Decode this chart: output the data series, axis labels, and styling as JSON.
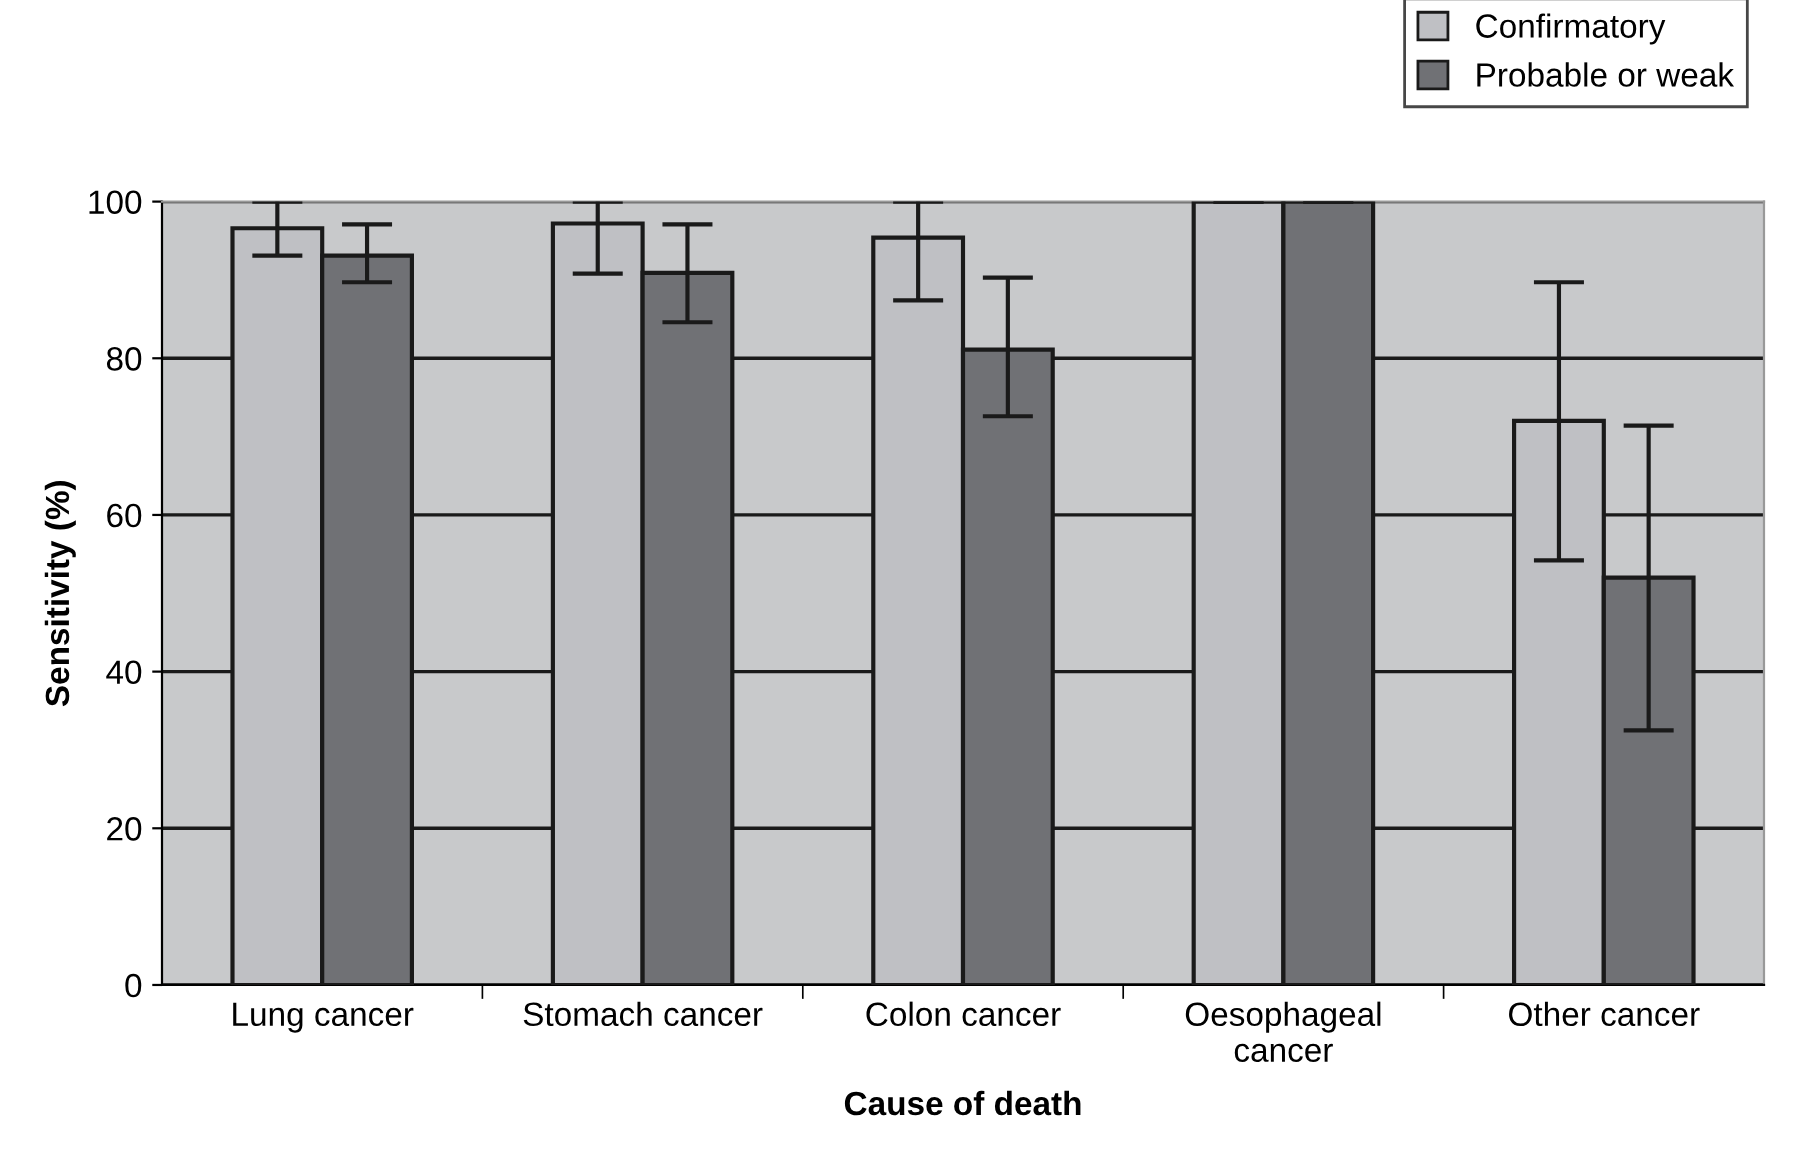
{
  "chart_data": {
    "type": "bar",
    "xlabel": "Cause of death",
    "ylabel": "Sensitivity (%)",
    "categories": [
      "Lung cancer",
      "Stomach cancer",
      "Colon cancer",
      "Oesophageal\ncancer",
      "Other cancer"
    ],
    "series": [
      {
        "name": "Confirmatory",
        "color": "#bfc0c4",
        "values": [
          96.6,
          97.2,
          95.4,
          100,
          72.0
        ],
        "errors": [
          [
            93.1,
            100
          ],
          [
            90.8,
            100
          ],
          [
            87.4,
            100
          ],
          [
            100,
            100
          ],
          [
            54.2,
            89.7
          ]
        ]
      },
      {
        "name": "Probable or weak",
        "color": "#707175",
        "values": [
          93.1,
          90.9,
          81.1,
          100,
          52.0
        ],
        "errors": [
          [
            89.7,
            97.1
          ],
          [
            84.6,
            97.1
          ],
          [
            72.6,
            90.3
          ],
          [
            100,
            100
          ],
          [
            32.5,
            71.4
          ]
        ]
      }
    ],
    "ylim": [
      0,
      100
    ],
    "yticks": [
      0,
      20,
      40,
      60,
      80,
      100
    ],
    "grid": "y",
    "legend": "top right"
  }
}
